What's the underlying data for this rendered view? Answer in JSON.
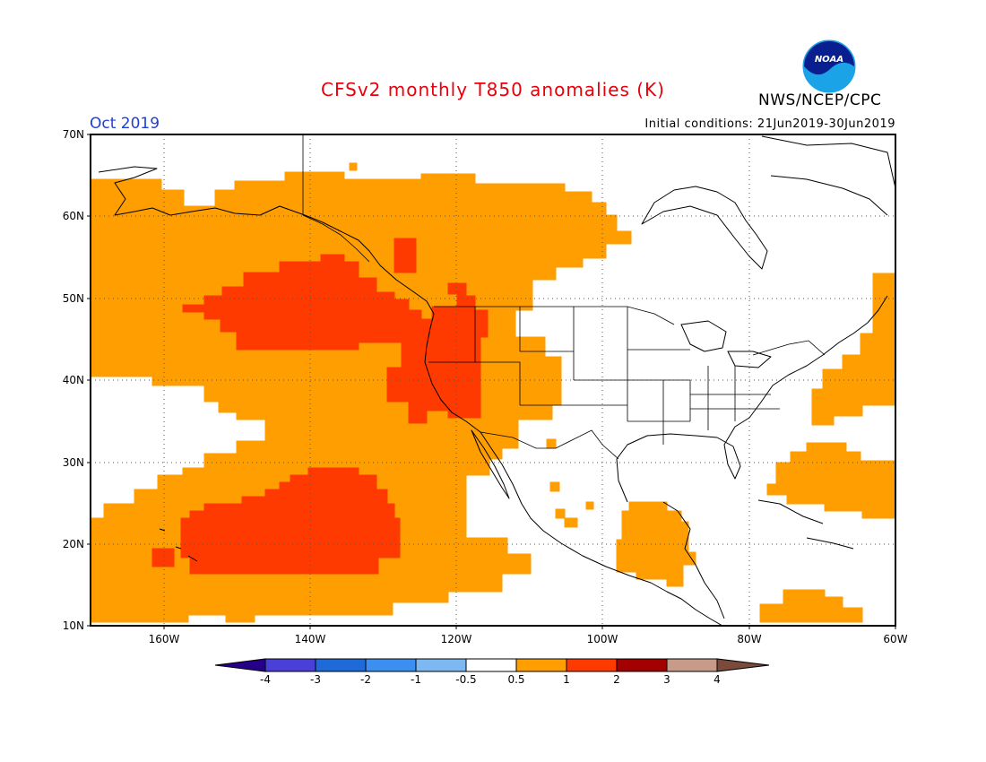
{
  "title": "CFSv2 monthly T850 anomalies (K)",
  "agency": "NWS/NCEP/CPC",
  "logo_text": "NOAA",
  "valid_month": "Oct 2019",
  "initial_conditions": "Initial conditions: 21Jun2019-30Jun2019",
  "map": {
    "lon_range": [
      -170,
      -60
    ],
    "lat_range": [
      10,
      70
    ],
    "lat_ticks": [
      "70N",
      "60N",
      "50N",
      "40N",
      "30N",
      "20N",
      "10N"
    ],
    "lon_ticks": [
      "160W",
      "140W",
      "120W",
      "100W",
      "80W",
      "60W"
    ],
    "grid": "dotted",
    "colors": {
      "anom_0_5_to_1": "#ff9e00",
      "anom_1_to_2": "#ff3a00",
      "coastline": "#000000"
    }
  },
  "colorbar": {
    "labels": [
      "-4",
      "-3",
      "-2",
      "-1",
      "-0.5",
      "0.5",
      "1",
      "2",
      "3",
      "4"
    ],
    "colors": [
      "#27008a",
      "#4a3fd6",
      "#1d6ad8",
      "#3c8ff0",
      "#7db8f2",
      "#ffffff",
      "#ff9e00",
      "#ff3a00",
      "#a30000",
      "#c89a8a",
      "#7a4a3a"
    ]
  }
}
